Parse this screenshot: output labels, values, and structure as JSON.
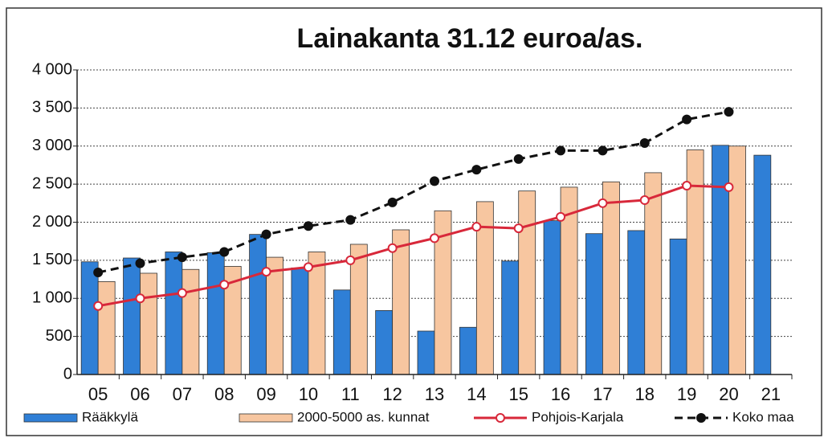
{
  "chart_data": {
    "type": "bar",
    "title": "Lainakanta 31.12 euroa/as.",
    "categories": [
      "05",
      "06",
      "07",
      "08",
      "09",
      "10",
      "11",
      "12",
      "13",
      "14",
      "15",
      "16",
      "17",
      "18",
      "19",
      "20",
      "21"
    ],
    "series": [
      {
        "name": "Rääkkylä",
        "type": "bar",
        "color": "#2f7fd6",
        "values": [
          1480,
          1530,
          1610,
          1600,
          1840,
          1400,
          1110,
          840,
          570,
          620,
          1490,
          2020,
          1850,
          1890,
          1780,
          3010,
          2880
        ]
      },
      {
        "name": "2000-5000 as. kunnat",
        "type": "bar",
        "color": "#f7c6a0",
        "values": [
          1220,
          1330,
          1380,
          1420,
          1540,
          1610,
          1710,
          1900,
          2150,
          2270,
          2410,
          2460,
          2530,
          2650,
          2950,
          3000,
          null
        ]
      },
      {
        "name": "Pohjois-Karjala",
        "type": "line",
        "color": "#d8283a",
        "marker_fill": "#ffffff",
        "dashed": false,
        "values": [
          900,
          1000,
          1070,
          1180,
          1350,
          1410,
          1500,
          1660,
          1790,
          1940,
          1920,
          2070,
          2250,
          2290,
          2480,
          2460,
          null
        ]
      },
      {
        "name": "Koko maa",
        "type": "line",
        "color": "#111111",
        "marker_fill": "#111111",
        "dashed": true,
        "values": [
          1340,
          1460,
          1540,
          1610,
          1840,
          1950,
          2030,
          2260,
          2540,
          2690,
          2830,
          2940,
          2940,
          3040,
          3350,
          3450,
          null
        ]
      }
    ],
    "ylim": [
      0,
      4000
    ],
    "yticks": [
      0,
      500,
      {
        "value": 1000,
        "label": "1 000"
      },
      {
        "value": 1500,
        "label": "1 500"
      },
      {
        "value": 2000,
        "label": "2 000"
      },
      {
        "value": 2500,
        "label": "2 500"
      },
      {
        "value": 3000,
        "label": "3 000"
      },
      {
        "value": 3500,
        "label": "3 500"
      },
      {
        "value": 4000,
        "label": "4 000"
      }
    ],
    "grid": true,
    "legend": "bottom"
  }
}
